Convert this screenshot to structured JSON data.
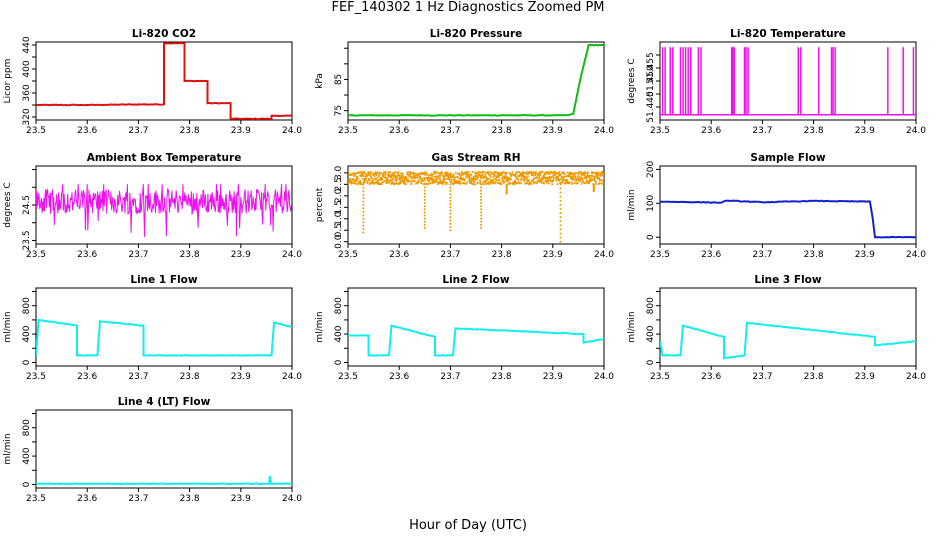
{
  "title": "FEF_140302 1 Hz Diagnostics Zoomed PM",
  "xlabel": "Hour of Day (UTC)",
  "chart_data": [
    {
      "type": "line",
      "title": "Li-820 CO2",
      "ylabel": "Licor ppm",
      "color": "#dd1111",
      "xlim": [
        23.5,
        24.0
      ],
      "ylim": [
        315,
        445
      ],
      "xticks": [
        "23.5",
        "23.6",
        "23.7",
        "23.8",
        "23.9",
        "24.0"
      ],
      "yticks": [
        320,
        340,
        360,
        380,
        400,
        420,
        440
      ],
      "ytick_labels": [
        "320",
        "360",
        "400",
        "440"
      ],
      "series": [
        {
          "x": [
            23.5,
            23.6,
            23.709,
            23.75,
            23.75,
            23.79,
            23.79,
            23.835,
            23.835,
            23.88,
            23.88,
            23.96,
            23.96,
            24.0
          ],
          "y": [
            340,
            340,
            341,
            341,
            443,
            443,
            380,
            380,
            343,
            343,
            317,
            317,
            322,
            322
          ]
        }
      ]
    },
    {
      "type": "line",
      "title": "Li-820 Pressure",
      "ylabel": "kPa",
      "color": "#11bb11",
      "xlim": [
        23.5,
        24.0
      ],
      "ylim": [
        72,
        97
      ],
      "xticks": [
        "23.5",
        "23.6",
        "23.7",
        "23.8",
        "23.9",
        "24.0"
      ],
      "yticks": [
        75,
        80,
        85,
        90,
        95
      ],
      "ytick_labels": [
        "75",
        "85"
      ],
      "series": [
        {
          "x": [
            23.5,
            23.9,
            23.93,
            23.94,
            23.955,
            23.97,
            24.0
          ],
          "y": [
            73.5,
            73.5,
            73.5,
            74,
            86,
            96,
            96
          ]
        }
      ]
    },
    {
      "type": "line",
      "title": "Li-820 Temperature",
      "ylabel": "degrees C",
      "color": "#ee11ee",
      "xlim": [
        23.5,
        24.0
      ],
      "ylim": [
        51.435,
        51.465
      ],
      "xticks": [
        "23.5",
        "23.6",
        "23.7",
        "23.8",
        "23.9",
        "24.0"
      ],
      "yticks": [
        51.44,
        51.445,
        51.45,
        51.455,
        51.46
      ],
      "ytick_labels": [
        "51.440",
        "51.450",
        "51.455"
      ],
      "baseline": 51.437,
      "spike_top": 51.463,
      "spikes": [
        23.505,
        23.51,
        23.52,
        23.525,
        23.54,
        23.545,
        23.55,
        23.555,
        23.56,
        23.575,
        23.58,
        23.64,
        23.642,
        23.645,
        23.665,
        23.668,
        23.672,
        23.77,
        23.775,
        23.81,
        23.835,
        23.838,
        23.842,
        23.945,
        23.975,
        23.995
      ]
    },
    {
      "type": "line",
      "title": "Ambient Box Temperature",
      "ylabel": "degrees C",
      "color": "#ee11ee",
      "xlim": [
        23.5,
        24.0
      ],
      "ylim": [
        23.4,
        25.6
      ],
      "xticks": [
        "23.5",
        "23.6",
        "23.7",
        "23.8",
        "23.9",
        "24.0"
      ],
      "yticks": [
        23.5,
        24.0,
        24.5,
        25.0,
        25.5
      ],
      "ytick_labels": [
        "23.5",
        "24.5"
      ],
      "noise": {
        "center": 24.6,
        "amplitude": 0.35,
        "dip_min": 23.6
      }
    },
    {
      "type": "scatter",
      "title": "Gas Stream RH",
      "ylabel": "percent",
      "color": "#ee9900",
      "xlim": [
        23.5,
        24.0
      ],
      "ylim": [
        -0.1,
        3.3
      ],
      "xticks": [
        "23.5",
        "23.6",
        "23.7",
        "23.8",
        "23.9",
        "24.0"
      ],
      "yticks": [
        0.0,
        0.5,
        1.0,
        1.5,
        2.0,
        2.5,
        3.0
      ],
      "ytick_labels": [
        "0.0",
        "0.5",
        "1.0",
        "1.5",
        "2.0",
        "2.5",
        "3.0"
      ],
      "band": [
        2.5,
        3.05
      ],
      "dips": [
        {
          "x": 23.53,
          "y": 0.4
        },
        {
          "x": 23.65,
          "y": 0.6
        },
        {
          "x": 23.7,
          "y": 0.5
        },
        {
          "x": 23.76,
          "y": 0.6
        },
        {
          "x": 23.915,
          "y": 0.0
        },
        {
          "x": 23.81,
          "y": 2.1
        },
        {
          "x": 23.98,
          "y": 2.2
        }
      ]
    },
    {
      "type": "line",
      "title": "Sample Flow",
      "ylabel": "ml/min",
      "color": "#1122cc",
      "xlim": [
        23.5,
        24.0
      ],
      "ylim": [
        -20,
        210
      ],
      "xticks": [
        "23.5",
        "23.6",
        "23.7",
        "23.8",
        "23.9",
        "24.0"
      ],
      "yticks": [
        0,
        100,
        200
      ],
      "ytick_labels": [
        "0",
        "100",
        "200"
      ],
      "series": [
        {
          "x": [
            23.5,
            23.62,
            23.63,
            23.7,
            23.8,
            23.91,
            23.915,
            23.92,
            24.0
          ],
          "y": [
            105,
            102,
            108,
            103,
            107,
            105,
            60,
            0,
            0
          ]
        }
      ]
    },
    {
      "type": "line",
      "title": "Line 1 Flow",
      "ylabel": "ml/min",
      "color": "#11eeee",
      "xlim": [
        23.5,
        24.0
      ],
      "ylim": [
        -50,
        1050
      ],
      "xticks": [
        "23.5",
        "23.6",
        "23.7",
        "23.8",
        "23.9",
        "24.0"
      ],
      "yticks": [
        0,
        200,
        400,
        600,
        800,
        1000
      ],
      "ytick_labels": [
        "0",
        "400",
        "800"
      ],
      "series": [
        {
          "x": [
            23.5,
            23.505,
            23.58,
            23.58,
            23.62,
            23.625,
            23.71,
            23.71,
            23.96,
            23.965,
            24.0
          ],
          "y": [
            100,
            600,
            520,
            100,
            100,
            580,
            520,
            100,
            100,
            560,
            500
          ]
        }
      ]
    },
    {
      "type": "line",
      "title": "Line 2 Flow",
      "ylabel": "ml/min",
      "color": "#11eeee",
      "xlim": [
        23.5,
        24.0
      ],
      "ylim": [
        -50,
        1050
      ],
      "xticks": [
        "23.5",
        "23.6",
        "23.7",
        "23.8",
        "23.9",
        "24.0"
      ],
      "yticks": [
        0,
        200,
        400,
        600,
        800,
        1000
      ],
      "ytick_labels": [
        "0",
        "400",
        "800"
      ],
      "series": [
        {
          "x": [
            23.5,
            23.54,
            23.54,
            23.58,
            23.585,
            23.67,
            23.67,
            23.705,
            23.71,
            23.96,
            23.96,
            24.0
          ],
          "y": [
            380,
            380,
            100,
            100,
            520,
            360,
            100,
            100,
            480,
            400,
            280,
            330
          ]
        }
      ]
    },
    {
      "type": "line",
      "title": "Line 3 Flow",
      "ylabel": "ml/min",
      "color": "#11eeee",
      "xlim": [
        23.5,
        24.0
      ],
      "ylim": [
        -50,
        1050
      ],
      "xticks": [
        "23.5",
        "23.6",
        "23.7",
        "23.8",
        "23.9",
        "24.0"
      ],
      "yticks": [
        0,
        200,
        400,
        600,
        800,
        1000
      ],
      "ytick_labels": [
        "0",
        "400",
        "800"
      ],
      "series": [
        {
          "x": [
            23.5,
            23.505,
            23.54,
            23.545,
            23.625,
            23.625,
            23.665,
            23.67,
            23.92,
            23.92,
            24.0
          ],
          "y": [
            300,
            100,
            100,
            520,
            360,
            60,
            100,
            560,
            360,
            240,
            300
          ]
        }
      ]
    },
    {
      "type": "line",
      "title": "Line 4 (LT) Flow",
      "ylabel": "ml/min",
      "color": "#11eeee",
      "xlim": [
        23.5,
        24.0
      ],
      "ylim": [
        -50,
        1050
      ],
      "xticks": [
        "23.5",
        "23.6",
        "23.7",
        "23.8",
        "23.9",
        "24.0"
      ],
      "yticks": [
        0,
        200,
        400,
        600,
        800,
        1000
      ],
      "ytick_labels": [
        "0",
        "400",
        "800"
      ],
      "series": [
        {
          "x": [
            23.5,
            23.955,
            23.957,
            23.959,
            24.0
          ],
          "y": [
            10,
            10,
            120,
            10,
            10
          ]
        }
      ]
    }
  ]
}
